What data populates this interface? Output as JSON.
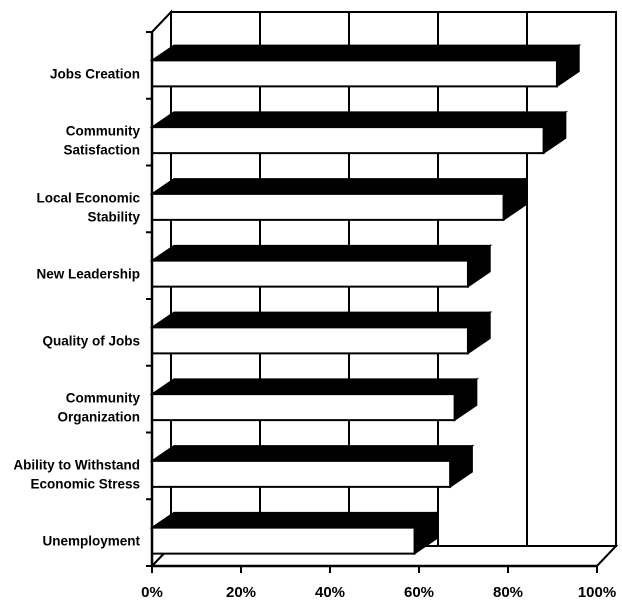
{
  "chart_data": {
    "type": "bar",
    "orientation": "horizontal",
    "style": "3d",
    "categories": [
      [
        "Jobs Creation"
      ],
      [
        "Community",
        "Satisfaction"
      ],
      [
        "Local Economic",
        "Stability"
      ],
      [
        "New Leadership"
      ],
      [
        "Quality of Jobs"
      ],
      [
        "Community",
        "Organization"
      ],
      [
        "Ability to Withstand",
        "Economic Stress"
      ],
      [
        "Unemployment"
      ]
    ],
    "values": [
      91,
      88,
      79,
      71,
      71,
      68,
      67,
      59
    ],
    "xlim": [
      0,
      100
    ],
    "xticks": [
      0,
      20,
      40,
      60,
      80,
      100
    ],
    "xtick_labels": [
      "0%",
      "20%",
      "40%",
      "60%",
      "80%",
      "100%"
    ],
    "grid": true,
    "colors": {
      "bar_face": "#ffffff",
      "bar_top": "#000000",
      "axis": "#000000",
      "grid": "#000000"
    }
  }
}
